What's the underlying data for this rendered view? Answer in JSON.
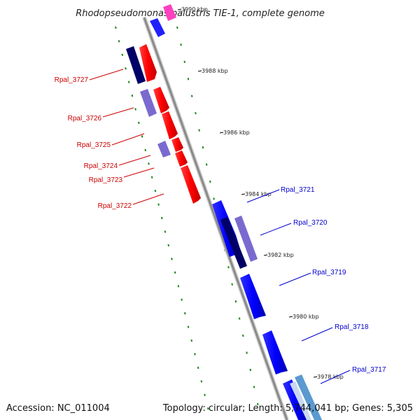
{
  "title": "Rhodopseudomonas palustris TIE-1, complete genome",
  "footer": {
    "accession": "Accession: NC_011004",
    "summary": "Topology: circular; Length: 5,744,041 bp; Genes: 5,305"
  },
  "ticks": [
    {
      "label": "3990 kbp"
    },
    {
      "label": "3988 kbp"
    },
    {
      "label": "3986 kbp"
    },
    {
      "label": "3984 kbp"
    },
    {
      "label": "3982 kbp"
    },
    {
      "label": "3980 kbp"
    },
    {
      "label": "3978 kbp"
    }
  ],
  "genes_left": [
    {
      "label": "Rpal_3727",
      "color": "#cc0000"
    },
    {
      "label": "Rpal_3726",
      "color": "#cc0000"
    },
    {
      "label": "Rpal_3725",
      "color": "#cc0000"
    },
    {
      "label": "Rpal_3724",
      "color": "#cc0000"
    },
    {
      "label": "Rpal_3723",
      "color": "#cc0000"
    },
    {
      "label": "Rpal_3722",
      "color": "#cc0000"
    }
  ],
  "genes_right": [
    {
      "label": "Rpal_3721",
      "color": "#0000cc"
    },
    {
      "label": "Rpal_3720",
      "color": "#0000cc"
    },
    {
      "label": "Rpal_3719",
      "color": "#0000cc"
    },
    {
      "label": "Rpal_3718",
      "color": "#0000cc"
    },
    {
      "label": "Rpal_3717",
      "color": "#0000cc"
    }
  ],
  "colors": {
    "forward_gene": "#ff0000",
    "reverse_gene": "#0000ff",
    "backbone": "#888888",
    "gc_dots": "#1a8a1a"
  }
}
